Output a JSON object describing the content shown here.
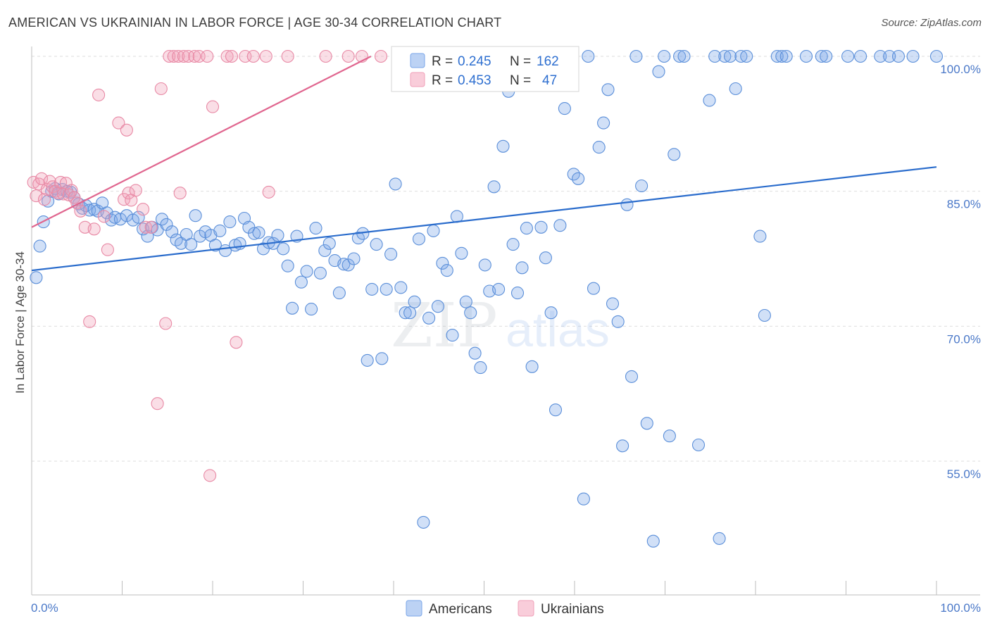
{
  "title": "AMERICAN VS UKRAINIAN IN LABOR FORCE | AGE 30-34 CORRELATION CHART",
  "source": "Source: ZipAtlas.com",
  "chart_data": {
    "type": "scatter",
    "title": "AMERICAN VS UKRAINIAN IN LABOR FORCE | AGE 30-34 CORRELATION CHART",
    "xlabel": "",
    "ylabel": "In Labor Force | Age 30-34",
    "xlim": [
      0,
      100
    ],
    "ylim": [
      40,
      101
    ],
    "x_tick_labels": [
      "0.0%",
      "100.0%"
    ],
    "y_ticks": [
      55,
      70,
      85,
      100
    ],
    "y_tick_labels": [
      "55.0%",
      "70.0%",
      "85.0%",
      "100.0%"
    ],
    "grid": true,
    "watermark": "ZIPatlas",
    "legend": {
      "placement": "top-center",
      "entries": [
        {
          "name": "Americans",
          "r_label": "R =",
          "r": "0.245",
          "n_label": "N =",
          "n": "162",
          "color": "#7aa6e8"
        },
        {
          "name": "Ukrainians",
          "r_label": "R =",
          "r": "0.453",
          "n_label": "N =",
          "n": "47",
          "color": "#f0a0b8"
        }
      ]
    },
    "series": [
      {
        "name": "Americans",
        "color": "#7aa6e8",
        "stroke": "#5b8fd9",
        "trend": {
          "x0": 0,
          "y0": 76.2,
          "x1": 100,
          "y1": 87.7,
          "color": "#2a6ccc"
        },
        "points": [
          [
            0.5,
            75.4
          ],
          [
            0.9,
            78.9
          ],
          [
            1.3,
            81.6
          ],
          [
            1.8,
            83.9
          ],
          [
            2.2,
            85.0
          ],
          [
            2.6,
            85.3
          ],
          [
            3.0,
            84.7
          ],
          [
            3.4,
            85.2
          ],
          [
            3.9,
            85.0
          ],
          [
            4.3,
            84.9
          ],
          [
            4.7,
            84.3
          ],
          [
            5.2,
            83.6
          ],
          [
            5.6,
            83.1
          ],
          [
            6.0,
            83.4
          ],
          [
            6.4,
            82.9
          ],
          [
            6.9,
            83.0
          ],
          [
            7.3,
            82.8
          ],
          [
            7.8,
            83.7
          ],
          [
            8.3,
            82.6
          ],
          [
            8.8,
            81.8
          ],
          [
            9.2,
            82.1
          ],
          [
            9.8,
            81.9
          ],
          [
            10.5,
            82.3
          ],
          [
            11.2,
            81.8
          ],
          [
            11.8,
            82.1
          ],
          [
            12.3,
            80.8
          ],
          [
            12.8,
            80.0
          ],
          [
            13.3,
            81.0
          ],
          [
            13.9,
            80.7
          ],
          [
            14.4,
            81.9
          ],
          [
            14.9,
            81.3
          ],
          [
            15.5,
            80.5
          ],
          [
            16.0,
            79.6
          ],
          [
            16.5,
            79.2
          ],
          [
            17.1,
            80.2
          ],
          [
            17.6,
            79.1
          ],
          [
            18.1,
            82.3
          ],
          [
            18.6,
            80.0
          ],
          [
            19.2,
            80.5
          ],
          [
            19.8,
            80.1
          ],
          [
            20.3,
            79.0
          ],
          [
            20.8,
            80.6
          ],
          [
            21.4,
            78.4
          ],
          [
            21.9,
            81.6
          ],
          [
            22.5,
            79.0
          ],
          [
            23.0,
            79.2
          ],
          [
            23.5,
            82.0
          ],
          [
            24.0,
            81.0
          ],
          [
            24.6,
            80.3
          ],
          [
            25.1,
            80.4
          ],
          [
            25.6,
            78.6
          ],
          [
            26.2,
            79.3
          ],
          [
            26.7,
            79.2
          ],
          [
            27.2,
            80.1
          ],
          [
            27.8,
            78.6
          ],
          [
            28.3,
            76.7
          ],
          [
            28.8,
            72.0
          ],
          [
            29.3,
            80.0
          ],
          [
            29.8,
            74.9
          ],
          [
            30.4,
            76.1
          ],
          [
            30.9,
            71.9
          ],
          [
            31.4,
            80.9
          ],
          [
            31.9,
            75.9
          ],
          [
            32.4,
            78.4
          ],
          [
            32.9,
            79.2
          ],
          [
            33.5,
            77.3
          ],
          [
            34.0,
            73.7
          ],
          [
            34.5,
            76.9
          ],
          [
            35.0,
            76.8
          ],
          [
            35.6,
            77.5
          ],
          [
            36.1,
            79.8
          ],
          [
            36.6,
            80.3
          ],
          [
            37.1,
            66.2
          ],
          [
            37.6,
            74.1
          ],
          [
            38.1,
            79.1
          ],
          [
            38.7,
            66.4
          ],
          [
            39.2,
            74.1
          ],
          [
            39.7,
            78.0
          ],
          [
            40.2,
            85.8
          ],
          [
            40.8,
            74.3
          ],
          [
            41.3,
            71.5
          ],
          [
            41.8,
            71.5
          ],
          [
            42.3,
            72.7
          ],
          [
            42.8,
            79.7
          ],
          [
            43.3,
            48.2
          ],
          [
            43.9,
            70.9
          ],
          [
            44.4,
            80.6
          ],
          [
            44.9,
            72.2
          ],
          [
            45.4,
            77.0
          ],
          [
            45.9,
            76.2
          ],
          [
            46.5,
            69.0
          ],
          [
            47.0,
            82.2
          ],
          [
            47.5,
            78.1
          ],
          [
            48.0,
            72.7
          ],
          [
            48.5,
            71.5
          ],
          [
            49.0,
            67.0
          ],
          [
            49.6,
            65.4
          ],
          [
            50.1,
            76.8
          ],
          [
            50.6,
            73.9
          ],
          [
            51.1,
            85.5
          ],
          [
            51.6,
            74.1
          ],
          [
            52.1,
            90.0
          ],
          [
            52.7,
            96.1
          ],
          [
            53.2,
            79.1
          ],
          [
            53.7,
            73.7
          ],
          [
            54.2,
            76.5
          ],
          [
            54.7,
            80.9
          ],
          [
            55.3,
            65.5
          ],
          [
            55.8,
            100.0
          ],
          [
            56.3,
            81.0
          ],
          [
            56.8,
            77.6
          ],
          [
            57.4,
            71.5
          ],
          [
            57.9,
            60.7
          ],
          [
            58.4,
            81.2
          ],
          [
            58.9,
            94.2
          ],
          [
            59.5,
            100.0
          ],
          [
            59.9,
            86.9
          ],
          [
            60.4,
            86.4
          ],
          [
            61.0,
            50.8
          ],
          [
            61.5,
            100.0
          ],
          [
            62.1,
            74.2
          ],
          [
            62.7,
            89.9
          ],
          [
            63.2,
            92.6
          ],
          [
            63.7,
            96.3
          ],
          [
            64.2,
            72.5
          ],
          [
            64.8,
            70.5
          ],
          [
            65.3,
            56.7
          ],
          [
            65.8,
            83.5
          ],
          [
            66.3,
            64.4
          ],
          [
            66.8,
            100.0
          ],
          [
            67.4,
            85.6
          ],
          [
            68.0,
            59.2
          ],
          [
            68.7,
            46.1
          ],
          [
            69.3,
            98.3
          ],
          [
            69.9,
            100.0
          ],
          [
            70.5,
            57.8
          ],
          [
            71.0,
            89.1
          ],
          [
            71.6,
            100.0
          ],
          [
            72.1,
            100.0
          ],
          [
            73.7,
            56.8
          ],
          [
            74.9,
            95.1
          ],
          [
            75.5,
            100.0
          ],
          [
            76.0,
            46.4
          ],
          [
            76.6,
            100.0
          ],
          [
            77.2,
            100.0
          ],
          [
            77.8,
            96.4
          ],
          [
            78.4,
            100.0
          ],
          [
            79.0,
            100.0
          ],
          [
            80.5,
            80.0
          ],
          [
            81.0,
            71.2
          ],
          [
            82.4,
            100.0
          ],
          [
            82.9,
            100.0
          ],
          [
            83.4,
            100.0
          ],
          [
            85.6,
            100.0
          ],
          [
            87.3,
            100.0
          ],
          [
            87.8,
            100.0
          ],
          [
            90.2,
            100.0
          ],
          [
            91.6,
            100.0
          ],
          [
            93.8,
            100.0
          ],
          [
            94.8,
            100.0
          ],
          [
            95.8,
            100.0
          ],
          [
            97.4,
            100.0
          ],
          [
            100.0,
            100.0
          ]
        ]
      },
      {
        "name": "Ukrainians",
        "color": "#f0a0b8",
        "stroke": "#e889a5",
        "trend": {
          "x0": 0,
          "y0": 81.0,
          "x1": 37.5,
          "y1": 100.0,
          "color": "#e0668f"
        },
        "points": [
          [
            0.2,
            86.0
          ],
          [
            0.5,
            84.5
          ],
          [
            0.8,
            85.8
          ],
          [
            1.1,
            86.4
          ],
          [
            1.4,
            84.1
          ],
          [
            1.7,
            85.2
          ],
          [
            2.0,
            86.1
          ],
          [
            2.3,
            85.5
          ],
          [
            2.6,
            85.0
          ],
          [
            2.9,
            84.8
          ],
          [
            3.2,
            86.0
          ],
          [
            3.5,
            84.7
          ],
          [
            3.8,
            85.9
          ],
          [
            4.1,
            84.6
          ],
          [
            4.4,
            85.1
          ],
          [
            4.7,
            84.3
          ],
          [
            5.0,
            83.7
          ],
          [
            5.4,
            82.8
          ],
          [
            5.9,
            81.0
          ],
          [
            6.4,
            70.5
          ],
          [
            6.9,
            80.8
          ],
          [
            7.4,
            95.7
          ],
          [
            8.0,
            82.2
          ],
          [
            8.4,
            78.5
          ],
          [
            9.6,
            92.6
          ],
          [
            10.2,
            84.1
          ],
          [
            10.7,
            84.8
          ],
          [
            10.5,
            91.8
          ],
          [
            11.0,
            84.0
          ],
          [
            11.5,
            85.1
          ],
          [
            12.3,
            83.0
          ],
          [
            12.6,
            81.0
          ],
          [
            13.2,
            81.0
          ],
          [
            13.9,
            61.4
          ],
          [
            14.3,
            96.4
          ],
          [
            14.8,
            70.3
          ],
          [
            15.2,
            100.0
          ],
          [
            15.7,
            100.0
          ],
          [
            16.2,
            100.0
          ],
          [
            16.4,
            84.8
          ],
          [
            16.8,
            100.0
          ],
          [
            17.3,
            100.0
          ],
          [
            18.0,
            100.0
          ],
          [
            18.5,
            100.0
          ],
          [
            19.4,
            100.0
          ],
          [
            19.7,
            53.4
          ],
          [
            20.0,
            94.4
          ],
          [
            21.6,
            100.0
          ],
          [
            22.1,
            100.0
          ],
          [
            22.6,
            68.2
          ],
          [
            23.6,
            100.0
          ],
          [
            24.5,
            100.0
          ],
          [
            25.9,
            100.0
          ],
          [
            26.2,
            84.9
          ],
          [
            28.3,
            100.0
          ],
          [
            32.5,
            100.0
          ],
          [
            35.0,
            100.0
          ],
          [
            36.5,
            100.0
          ],
          [
            38.6,
            100.0
          ]
        ]
      }
    ]
  }
}
